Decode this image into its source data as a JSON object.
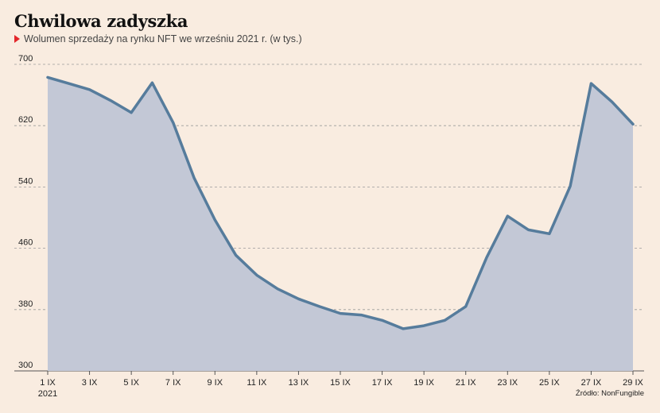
{
  "header": {
    "title": "Chwilowa zadyszka",
    "subtitle": "Wolumen sprzedaży na rynku NFT we wrześniu 2021 r. (w tys.)"
  },
  "source": "Źródło: NonFungible",
  "colors": {
    "background": "#f9ece0",
    "line": "#567c9c",
    "area": "#c3c8d6",
    "grid": "#9a9a9a",
    "bullet": "#e3262a"
  },
  "chart_data": {
    "type": "area",
    "title": "Chwilowa zadyszka",
    "subtitle": "Wolumen sprzedaży na rynku NFT we wrześniu 2021 r. (w tys.)",
    "xlabel": "",
    "ylabel": "",
    "ylim": [
      300,
      700
    ],
    "yticks": [
      300,
      380,
      460,
      540,
      620,
      700
    ],
    "grid": true,
    "x": [
      1,
      2,
      3,
      4,
      5,
      6,
      7,
      8,
      9,
      10,
      11,
      12,
      13,
      14,
      15,
      16,
      17,
      18,
      19,
      20,
      21,
      22,
      23,
      24,
      25,
      26,
      27,
      28,
      29
    ],
    "xlim": [
      1,
      29
    ],
    "xtick_values": [
      1,
      3,
      5,
      7,
      9,
      11,
      13,
      15,
      17,
      19,
      21,
      23,
      25,
      27,
      29
    ],
    "xtick_labels": [
      "1 IX",
      "3 IX",
      "5 IX",
      "7 IX",
      "9 IX",
      "11 IX",
      "13 IX",
      "15 IX",
      "17 IX",
      "19 IX",
      "21 IX",
      "23 IX",
      "25 IX",
      "27 IX",
      "29 IX"
    ],
    "xtick_sublabel": "2021",
    "series": [
      {
        "values": [
          683,
          675,
          667,
          653,
          637,
          676,
          624,
          552,
          497,
          451,
          425,
          407,
          394,
          384,
          375,
          373,
          366,
          355,
          359,
          366,
          384,
          448,
          502,
          484,
          479,
          541,
          675,
          651,
          622
        ]
      }
    ]
  }
}
